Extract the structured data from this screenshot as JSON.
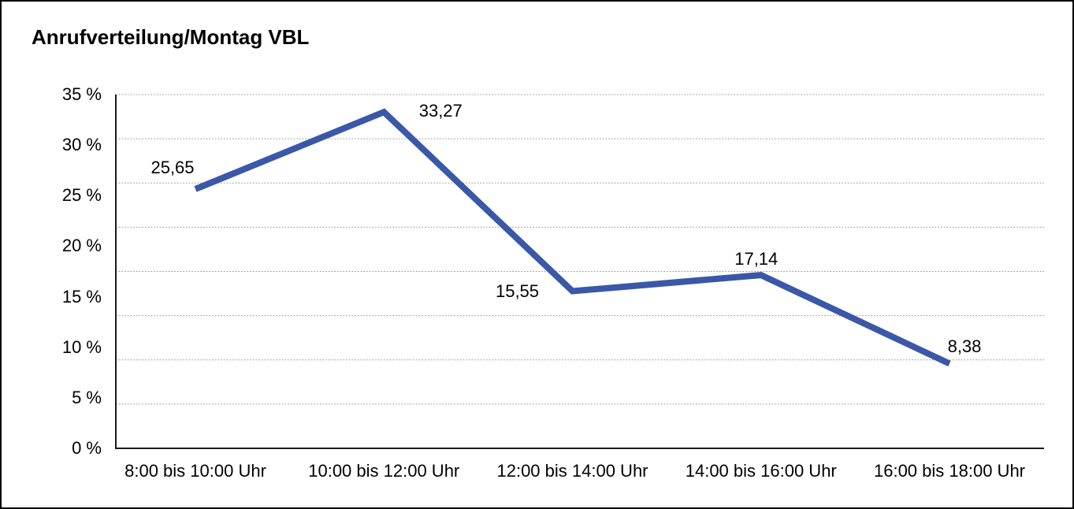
{
  "chart_data": {
    "type": "line",
    "title": "Anrufverteilung/Montag VBL",
    "categories": [
      "8:00 bis 10:00 Uhr",
      "10:00 bis 12:00 Uhr",
      "12:00 bis 14:00 Uhr",
      "14:00 bis 16:00 Uhr",
      "16:00 bis 18:00 Uhr"
    ],
    "values": [
      25.65,
      33.27,
      15.55,
      17.14,
      8.38
    ],
    "value_labels": [
      "25,65",
      "33,27",
      "15,55",
      "17,14",
      "8,38"
    ],
    "y_tick_values": [
      35,
      30,
      25,
      20,
      15,
      10,
      5,
      0
    ],
    "y_tick_labels": [
      "35 %",
      "30 %",
      "25 %",
      "20 %",
      "15 %",
      "10 %",
      "5 %",
      "0 %"
    ],
    "y_unit": "%",
    "ylim": [
      0,
      35
    ],
    "y_tick_step": 5,
    "gridline_divisions": 8,
    "grid": "horizontal-dotted",
    "legend_position": "none",
    "line_width": 8,
    "colors": {
      "series": "#3a58a7",
      "grid": "#8c8c8c",
      "axis": "#1a1a1a",
      "text": "#000000",
      "background": "#ffffff",
      "frame_border": "#000000"
    }
  }
}
